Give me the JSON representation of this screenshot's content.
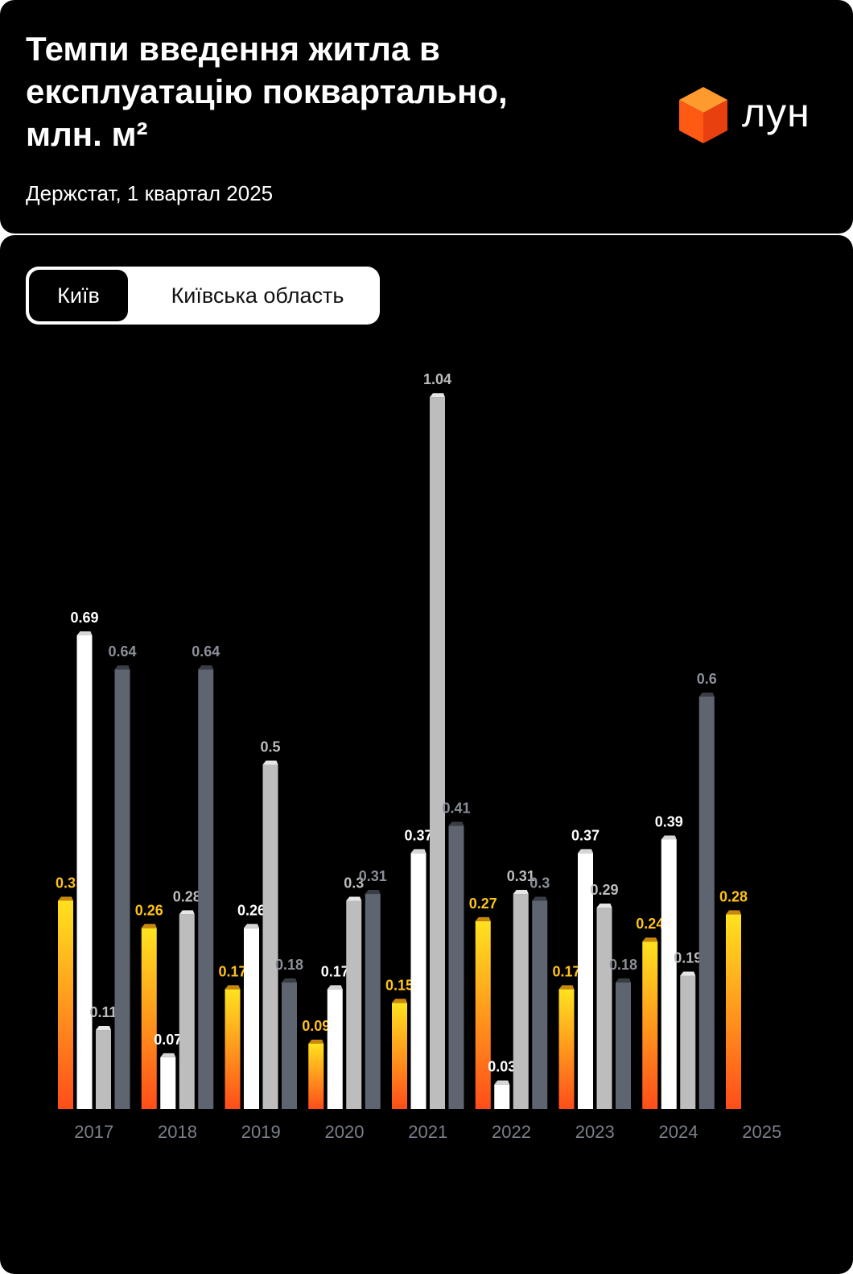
{
  "header": {
    "title": "Темпи введення житла в експлуатацію поквартально, млн. м²",
    "subtitle": "Держстат, 1 квартал 2025",
    "logo_text": "лун",
    "logo_icon": "orange-cube-icon"
  },
  "toggle": {
    "active_label": "Київ",
    "inactive_label": "Київська область"
  },
  "colors": {
    "background": "#000000",
    "q1_top": "#FFE21F",
    "q1_bottom": "#FF4D1A",
    "q1_label": "#FFC21A",
    "q2": "#FFFFFF",
    "q3": "#BDBDBD",
    "q4": "#5E6470",
    "q4_label": "#8A8F99",
    "axis_label": "#7A7F8A"
  },
  "chart_data": {
    "type": "bar",
    "categories": [
      "2017",
      "2018",
      "2019",
      "2020",
      "2021",
      "2022",
      "2023",
      "2024",
      "2025"
    ],
    "series": [
      {
        "values": [
          0.3,
          0.26,
          0.17,
          0.09,
          0.15,
          0.27,
          0.17,
          0.24,
          0.28
        ]
      },
      {
        "values": [
          0.69,
          0.07,
          0.26,
          0.17,
          0.37,
          0.03,
          0.37,
          0.39,
          null
        ]
      },
      {
        "values": [
          0.11,
          0.28,
          0.5,
          0.3,
          1.04,
          0.31,
          0.29,
          0.19,
          null
        ]
      },
      {
        "values": [
          0.64,
          0.64,
          0.18,
          0.31,
          0.41,
          0.3,
          0.18,
          0.6,
          null
        ]
      }
    ],
    "ylim": [
      0,
      1.1
    ],
    "grid": false,
    "legend": "none"
  }
}
